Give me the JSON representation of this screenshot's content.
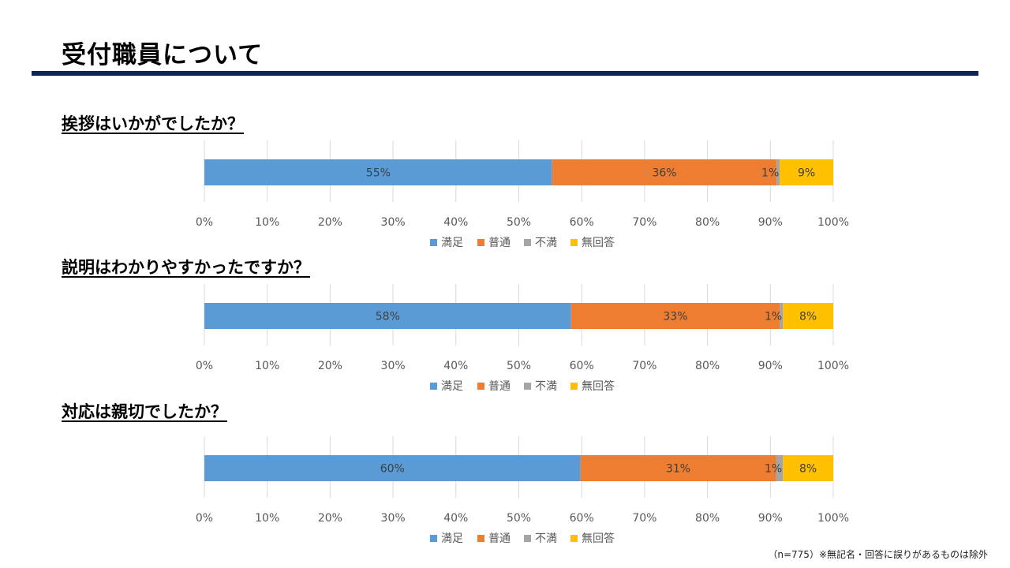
{
  "page": {
    "title": "受付職員について",
    "footnote": "（n=775）※無記名・回答に誤りがあるものは除外"
  },
  "colors": {
    "satisfied": "#5b9bd5",
    "normal": "#ed7d31",
    "dissatisfied": "#a5a5a5",
    "no_answer": "#ffc000",
    "rule": "#0d2657"
  },
  "questions": [
    {
      "label": "挨拶はいかがでしたか？"
    },
    {
      "label": "説明はわかりやすかったですか？"
    },
    {
      "label": "対応は親切でしたか？"
    }
  ],
  "chart_data": [
    {
      "type": "bar",
      "orientation": "horizontal",
      "stacked": true,
      "xlim": [
        0,
        100
      ],
      "x_ticks": [
        "0%",
        "10%",
        "20%",
        "30%",
        "40%",
        "50%",
        "60%",
        "70%",
        "80%",
        "90%",
        "100%"
      ],
      "grid": true,
      "legend_position": "bottom",
      "series": [
        {
          "name": "満足",
          "value": 55.3,
          "label": "55%",
          "color": "#5b9bd5"
        },
        {
          "name": "普通",
          "value": 35.7,
          "label": "36%",
          "color": "#ed7d31"
        },
        {
          "name": "不満",
          "value": 0.5,
          "label": "1%",
          "color": "#a5a5a5"
        },
        {
          "name": "無回答",
          "value": 8.5,
          "label": "9%",
          "color": "#ffc000"
        }
      ]
    },
    {
      "type": "bar",
      "orientation": "horizontal",
      "stacked": true,
      "xlim": [
        0,
        100
      ],
      "x_ticks": [
        "0%",
        "10%",
        "20%",
        "30%",
        "40%",
        "50%",
        "60%",
        "70%",
        "80%",
        "90%",
        "100%"
      ],
      "grid": true,
      "legend_position": "bottom",
      "series": [
        {
          "name": "満足",
          "value": 58.3,
          "label": "58%",
          "color": "#5b9bd5"
        },
        {
          "name": "普通",
          "value": 33.2,
          "label": "33%",
          "color": "#ed7d31"
        },
        {
          "name": "不満",
          "value": 0.5,
          "label": "1%",
          "color": "#a5a5a5"
        },
        {
          "name": "無回答",
          "value": 8.0,
          "label": "8%",
          "color": "#ffc000"
        }
      ]
    },
    {
      "type": "bar",
      "orientation": "horizontal",
      "stacked": true,
      "xlim": [
        0,
        100
      ],
      "x_ticks": [
        "0%",
        "10%",
        "20%",
        "30%",
        "40%",
        "50%",
        "60%",
        "70%",
        "80%",
        "90%",
        "100%"
      ],
      "grid": true,
      "legend_position": "bottom",
      "series": [
        {
          "name": "満足",
          "value": 59.8,
          "label": "60%",
          "color": "#5b9bd5"
        },
        {
          "name": "普通",
          "value": 31.1,
          "label": "31%",
          "color": "#ed7d31"
        },
        {
          "name": "不満",
          "value": 1.1,
          "label": "1%",
          "color": "#a5a5a5"
        },
        {
          "name": "無回答",
          "value": 8.0,
          "label": "8%",
          "color": "#ffc000"
        }
      ]
    }
  ]
}
